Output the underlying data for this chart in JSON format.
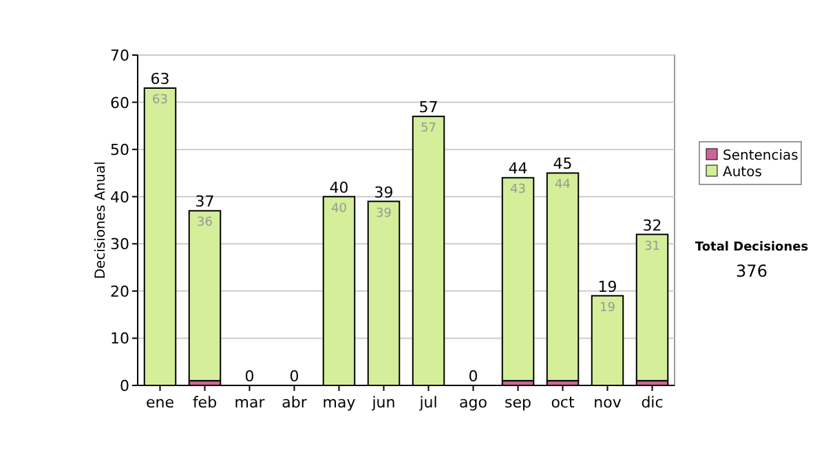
{
  "chart_data": {
    "type": "bar",
    "stacked": true,
    "ylabel": "Decisiones Anual",
    "categories": [
      "ene",
      "feb",
      "mar",
      "abr",
      "may",
      "jun",
      "jul",
      "ago",
      "sep",
      "oct",
      "nov",
      "dic"
    ],
    "series": [
      {
        "name": "Sentencias",
        "color": "#cc6699",
        "values": [
          0,
          1,
          0,
          0,
          0,
          0,
          0,
          0,
          1,
          1,
          0,
          1
        ]
      },
      {
        "name": "Autos",
        "color": "#d4ee99",
        "values": [
          63,
          36,
          0,
          0,
          40,
          39,
          57,
          0,
          43,
          44,
          19,
          31
        ],
        "value_labels": [
          "63",
          "36",
          null,
          null,
          "40",
          "39",
          "57",
          null,
          "43",
          "44",
          "19",
          "31"
        ]
      }
    ],
    "totals": [
      "63",
      "37",
      "0",
      "0",
      "40",
      "39",
      "57",
      "0",
      "44",
      "45",
      "19",
      "32"
    ],
    "ylim": [
      0,
      70
    ],
    "yticks": [
      0,
      10,
      20,
      30,
      40,
      50,
      60,
      70
    ],
    "grid": "y",
    "legend": "right",
    "annotations": [
      "Total Decisiones",
      "376"
    ]
  }
}
